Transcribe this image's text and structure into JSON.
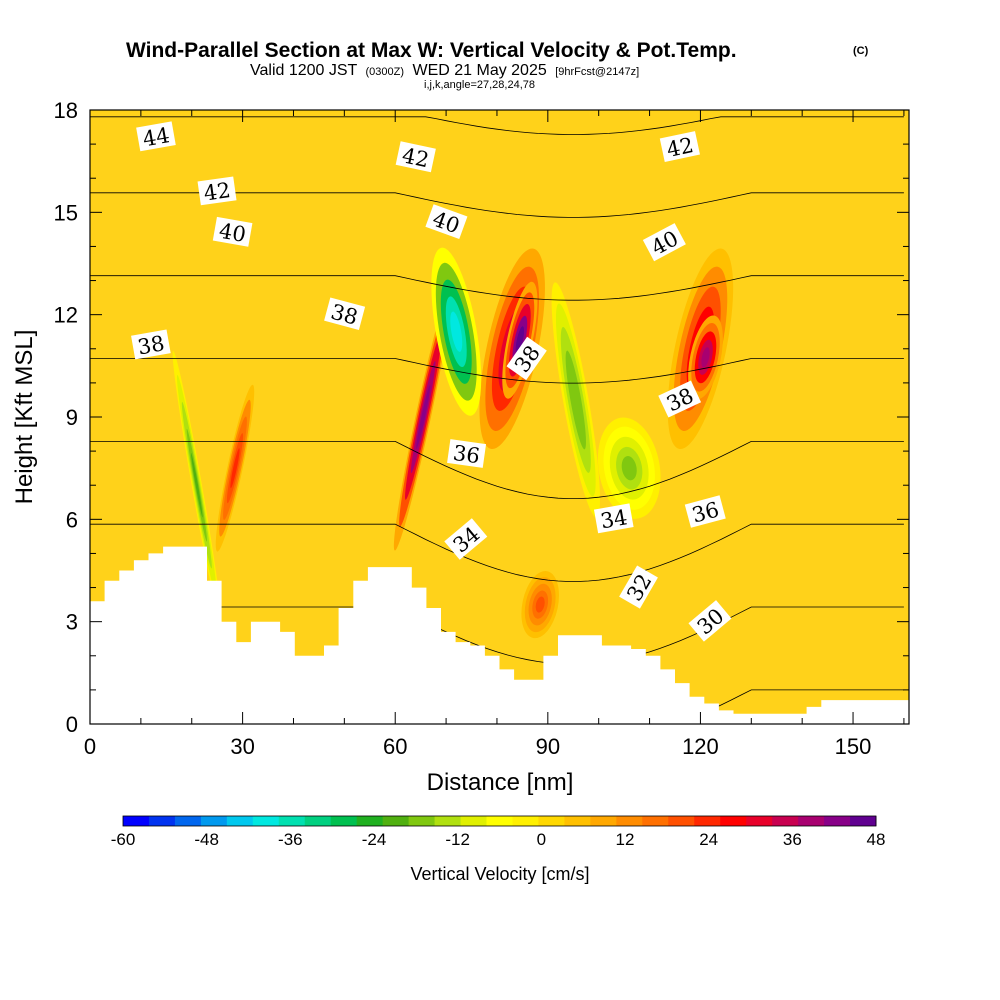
{
  "chart_data": {
    "type": "heatmap",
    "title": "Wind-Parallel Section at Max W: Vertical Velocity & Pot.Temp.",
    "title_mark": "(C)",
    "subtitle_valid": "Valid 1200 JST",
    "subtitle_utc": "(0300Z)",
    "subtitle_date": "WED 21 May 2025",
    "subtitle_fcst": "[9hrFcst@2147z]",
    "subtitle_indices": "i,j,k,angle=27,28,24,78",
    "xlabel": "Distance [nm]",
    "ylabel": "Height [Kft MSL]",
    "xlim": [
      0,
      161
    ],
    "ylim": [
      0,
      18
    ],
    "x_ticks": [
      0,
      30,
      60,
      90,
      120,
      150
    ],
    "y_ticks": [
      0,
      3,
      6,
      9,
      12,
      15,
      18
    ],
    "colorbar": {
      "title": "Vertical Velocity [cm/s]",
      "ticks": [
        -60,
        -48,
        -36,
        -24,
        -12,
        0,
        12,
        24,
        36,
        48
      ],
      "colors": [
        "#0000ff",
        "#0033f0",
        "#0066ee",
        "#0099ee",
        "#00c8ee",
        "#00e8e0",
        "#00e0b0",
        "#00d080",
        "#00c050",
        "#20b020",
        "#50b010",
        "#80c810",
        "#b0e010",
        "#e0f000",
        "#ffff00",
        "#fff000",
        "#ffd800",
        "#ffc000",
        "#ffa800",
        "#ff8c00",
        "#ff7000",
        "#ff5000",
        "#ff2800",
        "#ff0000",
        "#e8002a",
        "#c80050",
        "#a80070",
        "#880088",
        "#600090"
      ]
    },
    "vertical_velocity_cells": [
      {
        "x": [
          78,
          88
        ],
        "y": [
          8,
          14
        ],
        "w": 36
      },
      {
        "x": [
          82,
          87
        ],
        "y": [
          9.5,
          13
        ],
        "w": 46
      },
      {
        "x": [
          64,
          67
        ],
        "y": [
          5,
          13
        ],
        "w": 44
      },
      {
        "x": [
          115,
          125
        ],
        "y": [
          8,
          14
        ],
        "w": 30
      },
      {
        "x": [
          118,
          124
        ],
        "y": [
          9.5,
          12
        ],
        "w": 38
      },
      {
        "x": [
          68,
          76
        ],
        "y": [
          9,
          14
        ],
        "w": -38
      },
      {
        "x": [
          20,
          22
        ],
        "y": [
          3,
          11
        ],
        "w": -20
      },
      {
        "x": [
          27,
          30
        ],
        "y": [
          5,
          10
        ],
        "w": 24
      },
      {
        "x": [
          93,
          98
        ],
        "y": [
          6,
          13
        ],
        "w": -18
      },
      {
        "x": [
          100,
          112
        ],
        "y": [
          6,
          9
        ],
        "w": -16
      },
      {
        "x": [
          85,
          92
        ],
        "y": [
          2.5,
          4.5
        ],
        "w": 20
      }
    ],
    "potential_temperature_contours": [
      30,
      32,
      34,
      36,
      38,
      40,
      42,
      44
    ],
    "contour_labels": [
      "44",
      "42",
      "42",
      "42",
      "40",
      "40",
      "40",
      "38",
      "38",
      "38",
      "38",
      "36",
      "36",
      "34",
      "34",
      "32",
      "30"
    ],
    "terrain_kft": [
      3.6,
      4.2,
      4.5,
      4.8,
      5.0,
      5.2,
      5.2,
      5.2,
      4.2,
      3.0,
      2.4,
      3.0,
      3.0,
      2.7,
      2.0,
      2.0,
      2.3,
      3.4,
      4.2,
      4.6,
      4.6,
      4.6,
      4.0,
      3.4,
      2.7,
      2.4,
      2.3,
      2.0,
      1.6,
      1.3,
      1.3,
      2.0,
      2.6,
      2.6,
      2.6,
      2.3,
      2.3,
      2.2,
      2.0,
      1.6,
      1.2,
      0.8,
      0.6,
      0.4,
      0.3,
      0.3,
      0.3,
      0.3,
      0.3,
      0.5,
      0.7,
      0.7,
      0.7,
      0.7,
      0.7,
      0.7
    ]
  }
}
